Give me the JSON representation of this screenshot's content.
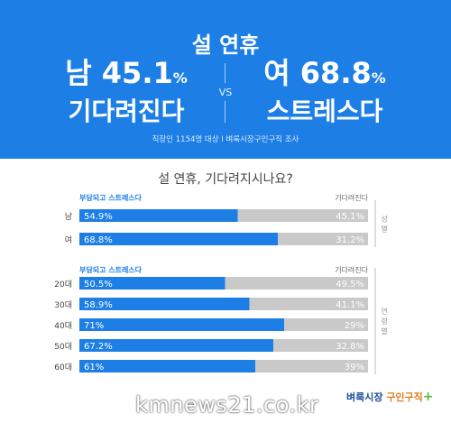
{
  "header": {
    "title": "설 연휴",
    "male": {
      "big": "남 45.1",
      "unit": "%",
      "sub": "기다려진다"
    },
    "vs": "VS",
    "female": {
      "big": "여 68.8",
      "unit": "%",
      "sub": "스트레스다"
    },
    "source": "직장인 1154명 대상  I  벼룩시장구인구직 조사"
  },
  "question": "설 연휴, 기다려지시나요?",
  "legend": {
    "left": "부담되고 스트레스다",
    "right": "기다려진다"
  },
  "group_labels": {
    "gender": "성별",
    "age": "연령별"
  },
  "colors": {
    "stress": "#1d7fe6",
    "wait": "#c9c9c9",
    "header_bg": "#1d7fe6"
  },
  "chart_data": [
    {
      "type": "bar",
      "stacked": true,
      "orientation": "horizontal",
      "categories": [
        "남",
        "여"
      ],
      "series": [
        {
          "name": "부담되고 스트레스다",
          "values": [
            54.9,
            68.8
          ],
          "labels": [
            "54.9%",
            "68.8%"
          ]
        },
        {
          "name": "기다려진다",
          "values": [
            45.1,
            31.2
          ],
          "labels": [
            "45.1%",
            "31.2%"
          ]
        }
      ],
      "xlim": [
        0,
        100
      ]
    },
    {
      "type": "bar",
      "stacked": true,
      "orientation": "horizontal",
      "categories": [
        "20대",
        "30대",
        "40대",
        "50대",
        "60대"
      ],
      "series": [
        {
          "name": "부담되고 스트레스다",
          "values": [
            50.5,
            58.9,
            71,
            67.2,
            61
          ],
          "labels": [
            "50.5%",
            "58.9%",
            "71%",
            "67.2%",
            "61%"
          ]
        },
        {
          "name": "기다려진다",
          "values": [
            49.5,
            41.1,
            29,
            32.8,
            39
          ],
          "labels": [
            "49.5%",
            "41.1%",
            "29%",
            "32.8%",
            "39%"
          ]
        }
      ],
      "xlim": [
        0,
        100
      ]
    }
  ],
  "footer": {
    "site": "kmnews21.co.kr",
    "logo_main": "벼룩시장 ",
    "logo_accent": "구인구직",
    "logo_plus": "+"
  }
}
